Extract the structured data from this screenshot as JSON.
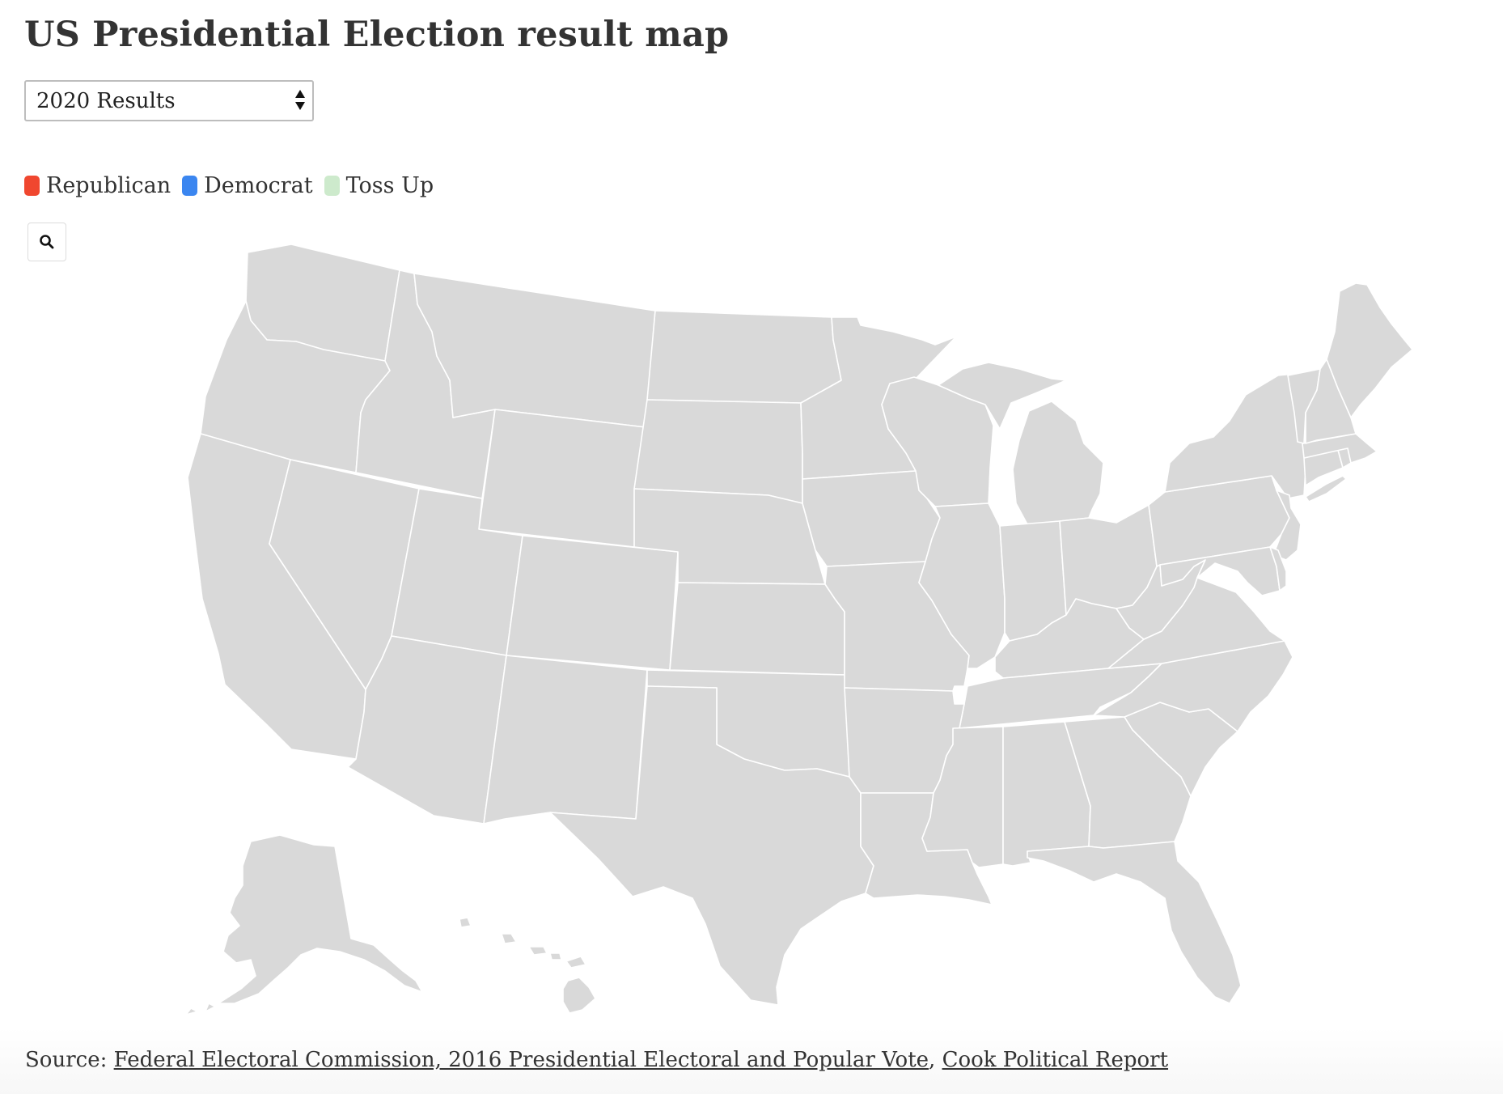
{
  "page": {
    "title": "US Presidential Election result map"
  },
  "selector": {
    "selected": "2020 Results"
  },
  "legend": {
    "items": [
      {
        "label": "Republican",
        "color": "#f0472f"
      },
      {
        "label": "Democrat",
        "color": "#3b86f0"
      },
      {
        "label": "Toss Up",
        "color": "#cdeacc"
      }
    ]
  },
  "map": {
    "default_fill": "#d9d9d9",
    "border": "#ffffff",
    "search_icon": "search-icon"
  },
  "source": {
    "prefix": "Source:",
    "link1": "Federal Electoral Commission, 2016 Presidential Electoral and Popular Vote",
    "separator": ",",
    "link2": "Cook Political Report"
  }
}
